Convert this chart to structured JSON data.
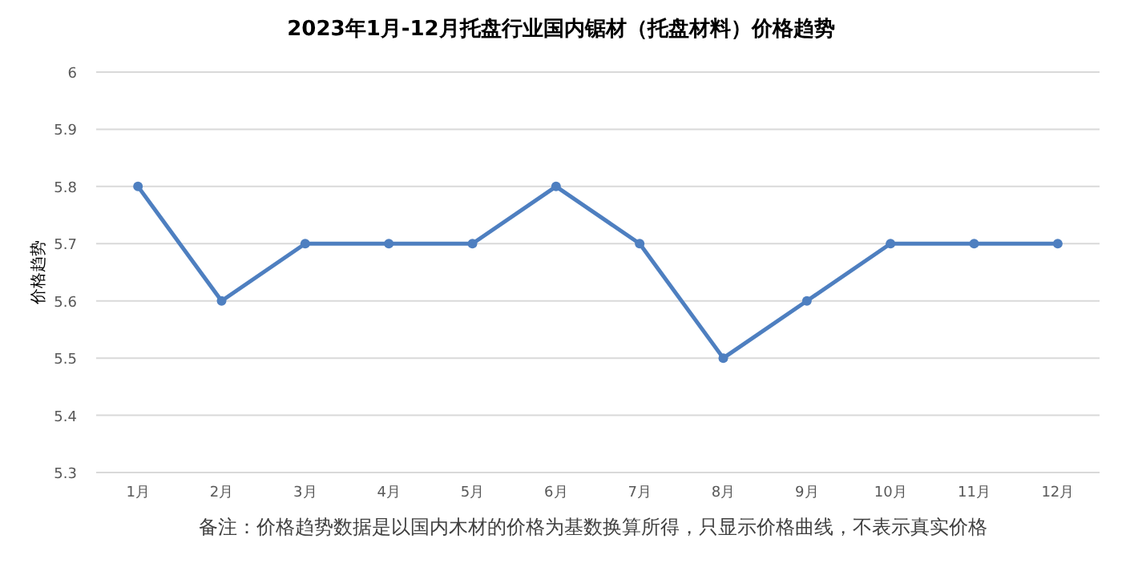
{
  "chart_data": {
    "type": "line",
    "title": "2023年1月-12月托盘行业国内锯材（托盘材料）价格趋势",
    "ylabel": "价格趋势",
    "categories": [
      "1月",
      "2月",
      "3月",
      "4月",
      "5月",
      "6月",
      "7月",
      "8月",
      "9月",
      "10月",
      "11月",
      "12月"
    ],
    "series": [
      {
        "color": "#4e7fc0",
        "values": [
          5.8,
          5.6,
          5.7,
          5.7,
          5.7,
          5.8,
          5.7,
          5.5,
          5.6,
          5.7,
          5.7,
          5.7
        ]
      }
    ],
    "ylim": [
      5.3,
      6
    ],
    "yticks": [
      5.3,
      5.4,
      5.5,
      5.6,
      5.7,
      5.8,
      5.9,
      6
    ],
    "grid": "y",
    "marker": "circle",
    "line_style": "solid",
    "annotations": [
      "备注：价格趋势数据是以国内木材的价格为基数换算所得，只显示价格曲线，不表示真实价格"
    ]
  }
}
